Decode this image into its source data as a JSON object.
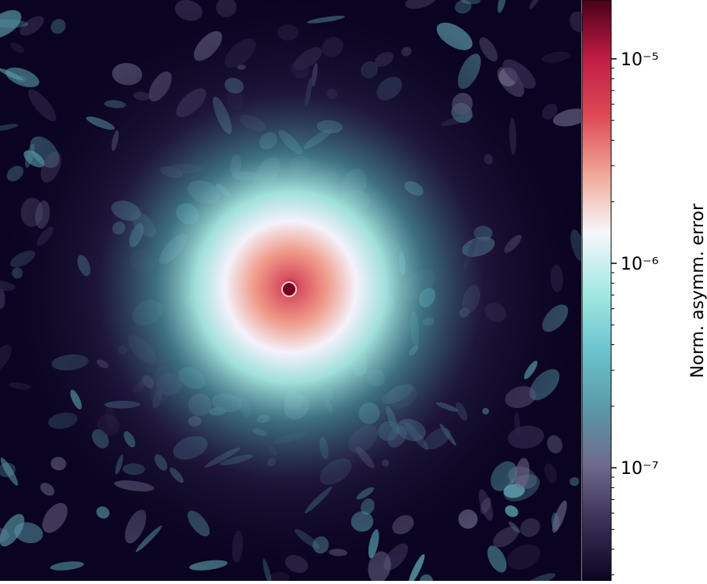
{
  "chart_data": {
    "type": "heatmap",
    "colorbar": {
      "label": "Norm. asymm. error",
      "scale": "log",
      "clim": [
        2.8e-08,
        1.94e-05
      ],
      "ticks": [
        {
          "value": 1e-07,
          "label": "10⁻⁷"
        },
        {
          "value": 1e-06,
          "label": "10⁻⁶"
        },
        {
          "value": 1e-05,
          "label": "10⁻⁵"
        }
      ],
      "minor_ticks": [
        3e-08,
        4e-08,
        5e-08,
        6e-08,
        7e-08,
        8e-08,
        9e-08,
        2e-07,
        3e-07,
        4e-07,
        5e-07,
        6e-07,
        7e-07,
        8e-07,
        9e-07,
        2e-06,
        3e-06,
        4e-06,
        5e-06,
        6e-06,
        7e-06,
        8e-06,
        9e-06
      ],
      "colors": [
        "#0b0420",
        "#3a2f55",
        "#6e6a8c",
        "#5a9aa8",
        "#6cc6cf",
        "#a6eae2",
        "#f7f7fd",
        "#f0a898",
        "#dd4a55",
        "#c01c44",
        "#4a0018"
      ]
    }
  }
}
